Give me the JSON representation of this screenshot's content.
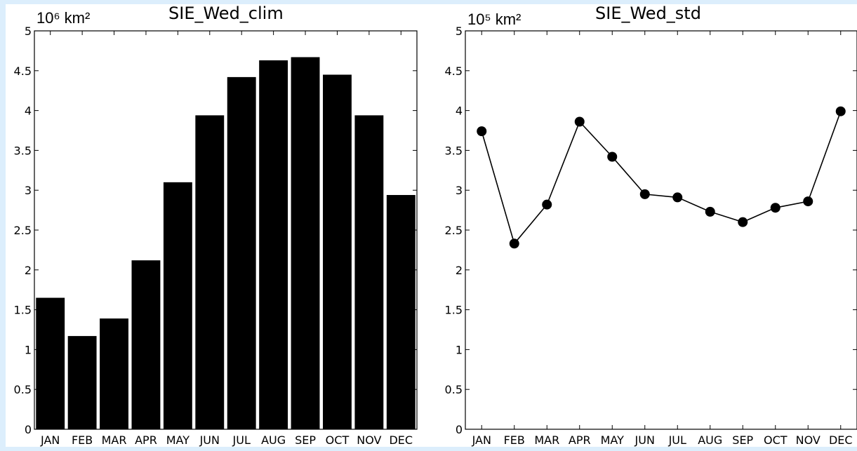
{
  "colors": {
    "frame": "#dceefc",
    "bar_fill": "#000000",
    "line": "#000000",
    "background": "#ffffff"
  },
  "chart_data": [
    {
      "type": "bar",
      "title": "SIE_Wed_clim",
      "unit": "10⁶ km²",
      "categories": [
        "JAN",
        "FEB",
        "MAR",
        "APR",
        "MAY",
        "JUN",
        "JUL",
        "AUG",
        "SEP",
        "OCT",
        "NOV",
        "DEC"
      ],
      "values": [
        1.65,
        1.17,
        1.39,
        2.12,
        3.1,
        3.94,
        4.42,
        4.63,
        4.67,
        4.45,
        3.94,
        2.94
      ],
      "yticks": [
        "0",
        "0.5",
        "1",
        "1.5",
        "2",
        "2.5",
        "3",
        "3.5",
        "4",
        "4.5",
        "5"
      ],
      "ylim": [
        0,
        5
      ],
      "grid": false
    },
    {
      "type": "line",
      "title": "SIE_Wed_std",
      "unit": "10⁵ km²",
      "categories": [
        "JAN",
        "FEB",
        "MAR",
        "APR",
        "MAY",
        "JUN",
        "JUL",
        "AUG",
        "SEP",
        "OCT",
        "NOV",
        "DEC"
      ],
      "values": [
        3.74,
        2.33,
        2.82,
        3.86,
        3.42,
        2.95,
        2.91,
        2.73,
        2.6,
        2.78,
        2.86,
        3.99
      ],
      "yticks": [
        "0",
        "0.5",
        "1",
        "1.5",
        "2",
        "2.5",
        "3",
        "3.5",
        "4",
        "4.5",
        "5"
      ],
      "ylim": [
        0,
        5
      ],
      "grid": false
    }
  ]
}
